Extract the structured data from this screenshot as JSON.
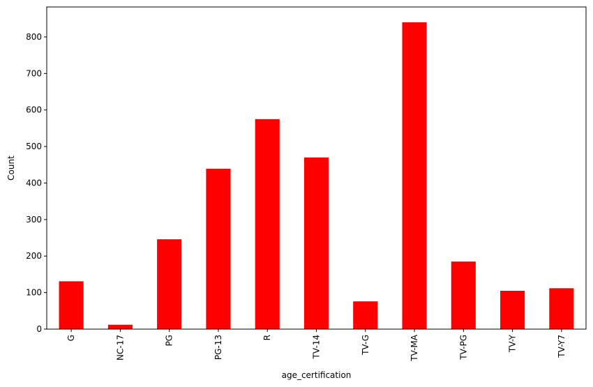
{
  "chart_data": {
    "type": "bar",
    "title": "",
    "xlabel": "age_certification",
    "ylabel": "Count",
    "categories": [
      "G",
      "NC-17",
      "PG",
      "PG-13",
      "R",
      "TV-14",
      "TV-G",
      "TV-MA",
      "TV-PG",
      "TV-Y",
      "TV-Y7"
    ],
    "values": [
      131,
      12,
      246,
      439,
      575,
      470,
      76,
      840,
      185,
      105,
      112
    ],
    "ylim": [
      0,
      882
    ],
    "yticks": [
      0,
      100,
      200,
      300,
      400,
      500,
      600,
      700,
      800
    ],
    "grid": false,
    "legend": "none",
    "bar_color": "#ff0000"
  }
}
